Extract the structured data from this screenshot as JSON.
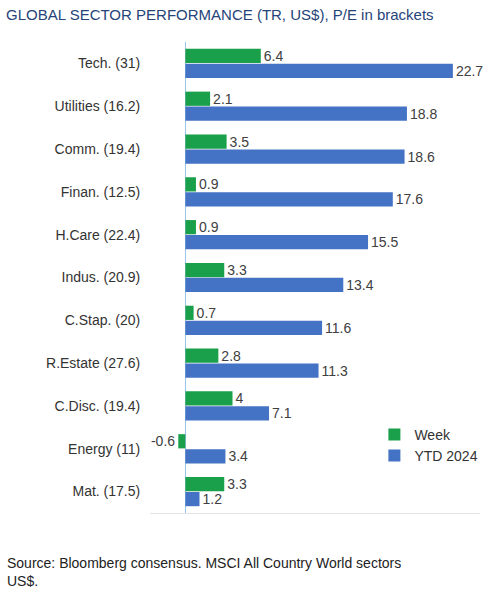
{
  "chart_data": {
    "type": "bar",
    "orientation": "horizontal",
    "title": "GLOBAL SECTOR PERFORMANCE (TR, US$), P/E in brackets",
    "source": "Source: Bloomberg consensus. MSCI All Country World sectors US$.",
    "categories": [
      "Tech. (31)",
      "Utilities (16.2)",
      "Comm. (19.4)",
      "Finan. (12.5)",
      "H.Care (22.4)",
      "Indus. (20.9)",
      "C.Stap. (20)",
      "R.Estate (27.6)",
      "C.Disc. (19.4)",
      "Energy (11)",
      "Mat. (17.5)"
    ],
    "series": [
      {
        "name": "Week",
        "color": "#1aa04a",
        "values": [
          6.4,
          2.1,
          3.5,
          0.9,
          0.9,
          3.3,
          0.7,
          2.8,
          4.0,
          -0.6,
          3.3
        ]
      },
      {
        "name": "YTD 2024",
        "color": "#4472c4",
        "values": [
          22.7,
          18.8,
          18.6,
          17.6,
          15.5,
          13.4,
          11.6,
          11.3,
          7.1,
          3.4,
          1.2
        ]
      }
    ],
    "xlim": [
      -3,
      25
    ],
    "xticks": [],
    "grid": false,
    "data_labels": true,
    "tick_labels": "y",
    "legend": "lower right"
  }
}
